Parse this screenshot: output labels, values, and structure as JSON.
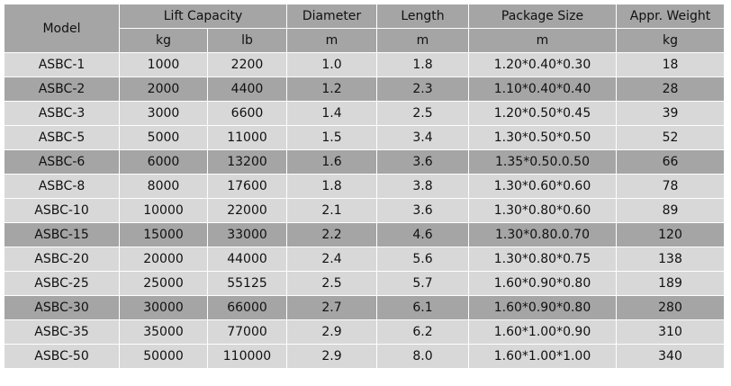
{
  "headers": {
    "model": "Model",
    "lift_capacity": "Lift Capacity",
    "diameter": "Diameter",
    "length": "Length",
    "package_size": "Package Size",
    "weight": "Appr. Weight"
  },
  "units": {
    "kg": "kg",
    "lb": "lb",
    "diameter": "m",
    "length": "m",
    "package": "m",
    "weight": "kg"
  },
  "rows": [
    {
      "model": "ASBC-1",
      "kg": "1000",
      "lb": "2200",
      "diameter": "1.0",
      "length": "1.8",
      "package": "1.20*0.40*0.30",
      "weight": "18",
      "shade": "light"
    },
    {
      "model": "ASBC-2",
      "kg": "2000",
      "lb": "4400",
      "diameter": "1.2",
      "length": "2.3",
      "package": "1.10*0.40*0.40",
      "weight": "28",
      "shade": "dark"
    },
    {
      "model": "ASBC-3",
      "kg": "3000",
      "lb": "6600",
      "diameter": "1.4",
      "length": "2.5",
      "package": "1.20*0.50*0.45",
      "weight": "39",
      "shade": "light"
    },
    {
      "model": "ASBC-5",
      "kg": "5000",
      "lb": "11000",
      "diameter": "1.5",
      "length": "3.4",
      "package": "1.30*0.50*0.50",
      "weight": "52",
      "shade": "light"
    },
    {
      "model": "ASBC-6",
      "kg": "6000",
      "lb": "13200",
      "diameter": "1.6",
      "length": "3.6",
      "package": "1.35*0.50.0.50",
      "weight": "66",
      "shade": "dark"
    },
    {
      "model": "ASBC-8",
      "kg": "8000",
      "lb": "17600",
      "diameter": "1.8",
      "length": "3.8",
      "package": "1.30*0.60*0.60",
      "weight": "78",
      "shade": "light"
    },
    {
      "model": "ASBC-10",
      "kg": "10000",
      "lb": "22000",
      "diameter": "2.1",
      "length": "3.6",
      "package": "1.30*0.80*0.60",
      "weight": "89",
      "shade": "light"
    },
    {
      "model": "ASBC-15",
      "kg": "15000",
      "lb": "33000",
      "diameter": "2.2",
      "length": "4.6",
      "package": "1.30*0.80.0.70",
      "weight": "120",
      "shade": "dark"
    },
    {
      "model": "ASBC-20",
      "kg": "20000",
      "lb": "44000",
      "diameter": "2.4",
      "length": "5.6",
      "package": "1.30*0.80*0.75",
      "weight": "138",
      "shade": "light"
    },
    {
      "model": "ASBC-25",
      "kg": "25000",
      "lb": "55125",
      "diameter": "2.5",
      "length": "5.7",
      "package": "1.60*0.90*0.80",
      "weight": "189",
      "shade": "light"
    },
    {
      "model": "ASBC-30",
      "kg": "30000",
      "lb": "66000",
      "diameter": "2.7",
      "length": "6.1",
      "package": "1.60*0.90*0.80",
      "weight": "280",
      "shade": "dark"
    },
    {
      "model": "ASBC-35",
      "kg": "35000",
      "lb": "77000",
      "diameter": "2.9",
      "length": "6.2",
      "package": "1.60*1.00*0.90",
      "weight": "310",
      "shade": "light"
    },
    {
      "model": "ASBC-50",
      "kg": "50000",
      "lb": "110000",
      "diameter": "2.9",
      "length": "8.0",
      "package": "1.60*1.00*1.00",
      "weight": "340",
      "shade": "light"
    }
  ],
  "colors": {
    "header_bg": "#a5a5a5",
    "row_light": "#d8d8d8",
    "row_dark": "#a5a5a5",
    "border": "#ffffff",
    "text": "#111111"
  }
}
